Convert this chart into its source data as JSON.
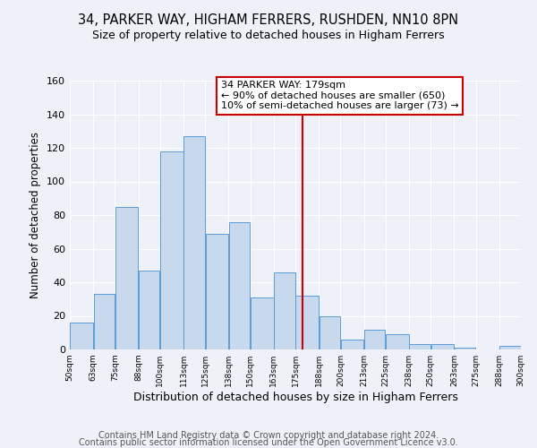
{
  "title": "34, PARKER WAY, HIGHAM FERRERS, RUSHDEN, NN10 8PN",
  "subtitle": "Size of property relative to detached houses in Higham Ferrers",
  "xlabel": "Distribution of detached houses by size in Higham Ferrers",
  "ylabel": "Number of detached properties",
  "bin_edges": [
    50,
    63,
    75,
    88,
    100,
    113,
    125,
    138,
    150,
    163,
    175,
    188,
    200,
    213,
    225,
    238,
    250,
    263,
    275,
    288,
    300
  ],
  "counts": [
    16,
    33,
    85,
    47,
    118,
    127,
    69,
    76,
    31,
    46,
    32,
    20,
    6,
    12,
    9,
    3,
    3,
    1,
    0,
    2
  ],
  "bar_color": "#c9d9ed",
  "bar_edgecolor": "#5b9bd5",
  "vline_x": 179,
  "vline_color": "#cc0000",
  "annotation_line1": "34 PARKER WAY: 179sqm",
  "annotation_line2": "← 90% of detached houses are smaller (650)",
  "annotation_line3": "10% of semi-detached houses are larger (73) →",
  "box_edgecolor": "#cc0000",
  "ylim": [
    0,
    160
  ],
  "yticks": [
    0,
    20,
    40,
    60,
    80,
    100,
    120,
    140,
    160
  ],
  "tick_labels": [
    "50sqm",
    "63sqm",
    "75sqm",
    "88sqm",
    "100sqm",
    "113sqm",
    "125sqm",
    "138sqm",
    "150sqm",
    "163sqm",
    "175sqm",
    "188sqm",
    "200sqm",
    "213sqm",
    "225sqm",
    "238sqm",
    "250sqm",
    "263sqm",
    "275sqm",
    "288sqm",
    "300sqm"
  ],
  "footer_line1": "Contains HM Land Registry data © Crown copyright and database right 2024.",
  "footer_line2": "Contains public sector information licensed under the Open Government Licence v3.0.",
  "bg_color": "#eef2f8",
  "plot_bg_color": "#eef2f8",
  "grid_color": "#ffffff",
  "title_fontsize": 10.5,
  "subtitle_fontsize": 9,
  "xlabel_fontsize": 9,
  "ylabel_fontsize": 8.5,
  "annotation_fontsize": 8,
  "tick_fontsize": 6.5,
  "ytick_fontsize": 8,
  "footer_fontsize": 7
}
